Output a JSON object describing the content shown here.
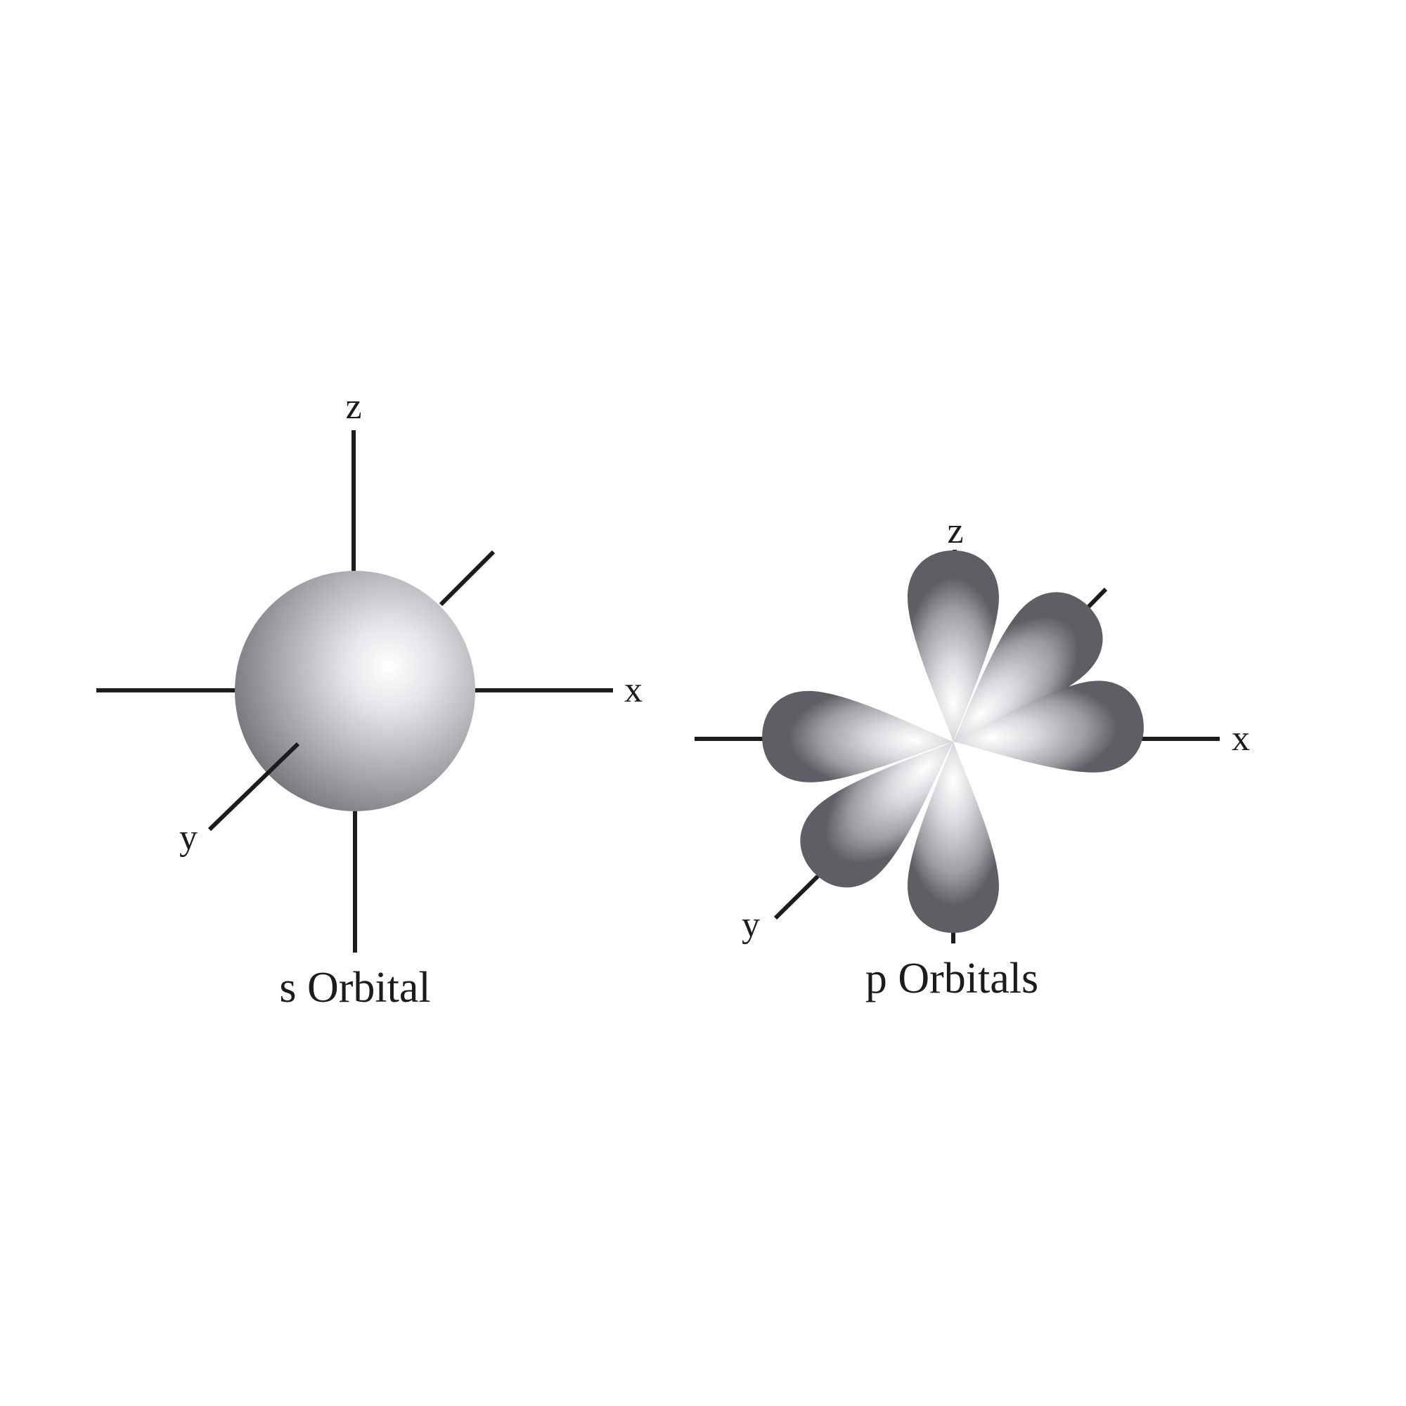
{
  "s_orbital": {
    "caption": "s Orbital",
    "axis_labels": {
      "x": "x",
      "y": "y",
      "z": "z"
    }
  },
  "p_orbitals": {
    "caption": "p Orbitals",
    "axis_labels": {
      "x": "x",
      "y": "y",
      "z": "z"
    }
  },
  "colors": {
    "background": "#ffffff",
    "axis": "#1c1c1c",
    "shade_light": "#ffffff",
    "shade_mid": "#c4c5c9",
    "shade_dark": "#6d6e73"
  }
}
